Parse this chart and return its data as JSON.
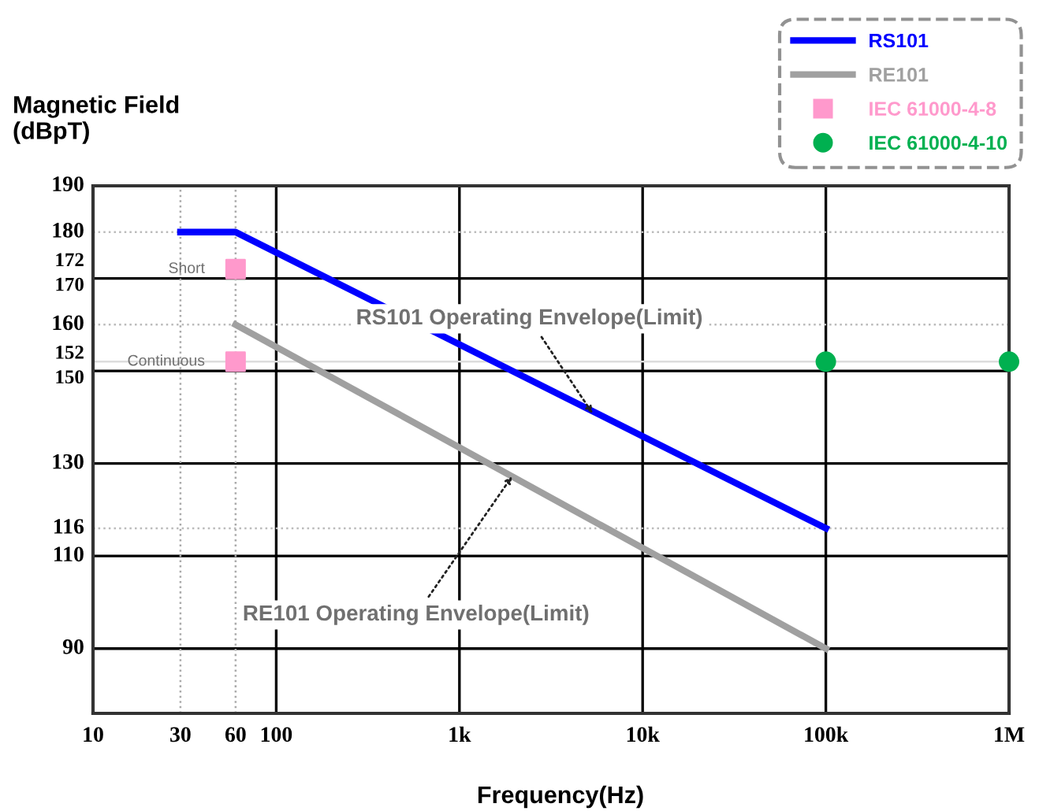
{
  "chart_data": {
    "type": "line",
    "xlabel": "Frequency(Hz)",
    "ylabel": "Magnetic Field\n(dBpT)",
    "log": "x",
    "xlim": [
      10,
      1000000
    ],
    "ylim": [
      76,
      190
    ],
    "xticks": [
      10,
      30,
      60,
      100,
      {
        "value": 1000,
        "label": "1k"
      },
      {
        "value": 10000,
        "label": "10k"
      },
      {
        "value": 100000,
        "label": "100k"
      },
      {
        "value": 1000000,
        "label": "1M"
      }
    ],
    "yticks": [
      90,
      110,
      116,
      130,
      150,
      152,
      160,
      170,
      172,
      180,
      190
    ],
    "grid": false,
    "legend": "top right",
    "series": [
      {
        "name": "RS101",
        "color": "#0000ff",
        "x": [
          30,
          60,
          100000
        ],
        "values": [
          180,
          180,
          116
        ],
        "marker": "none",
        "line_style": "solid"
      },
      {
        "name": "RE101",
        "color": "#a0a0a0",
        "x": [
          60,
          100000
        ],
        "values": [
          160,
          90
        ],
        "marker": "none",
        "line_style": "solid"
      },
      {
        "name": "IEC 61000-4-8",
        "type": "scatter",
        "color": "#ff99cc",
        "x": [
          60,
          60
        ],
        "values": [
          172,
          152
        ],
        "marker": "square"
      },
      {
        "name": "IEC 61000-4-10",
        "type": "scatter",
        "color": "#00b050",
        "x": [
          100000,
          1000000
        ],
        "values": [
          152,
          152
        ],
        "marker": "circle"
      }
    ],
    "ref_lines": [
      {
        "axis": "y",
        "value": 110,
        "color": "#000000",
        "line_style": "solid"
      },
      {
        "axis": "y",
        "value": 130,
        "color": "#000000",
        "line_style": "solid"
      },
      {
        "axis": "y",
        "value": 150,
        "color": "#000000",
        "line_style": "solid"
      },
      {
        "axis": "y",
        "value": 170,
        "color": "#000000",
        "line_style": "solid"
      },
      {
        "axis": "x",
        "value": 100,
        "color": "#000000",
        "line_style": "solid"
      },
      {
        "axis": "x",
        "value": 1000,
        "color": "#000000",
        "line_style": "solid"
      },
      {
        "axis": "x",
        "value": 10000,
        "color": "#000000",
        "line_style": "solid"
      },
      {
        "axis": "x",
        "value": 100000,
        "color": "#000000",
        "line_style": "solid"
      },
      {
        "axis": "y",
        "value": 90,
        "color": "#000000",
        "line_style": "solid"
      },
      {
        "axis": "x",
        "value": 30,
        "color": "#aaaaaa",
        "line_style": "dotted"
      },
      {
        "axis": "x",
        "value": 60,
        "color": "#aaaaaa",
        "line_style": "dotted"
      },
      {
        "axis": "y",
        "value": 116,
        "color": "#bbbbbb",
        "line_style": "dotted"
      },
      {
        "axis": "y",
        "value": 152,
        "color": "#dddddd",
        "line_style": "solid"
      },
      {
        "axis": "y",
        "value": 160,
        "color": "#bbbbbb",
        "line_style": "dotted"
      },
      {
        "axis": "y",
        "value": 180,
        "color": "#bbbbbb",
        "line_style": "dotted"
      }
    ],
    "annotations": [
      {
        "text": "Short",
        "x": 60,
        "y": 172
      },
      {
        "text": "Continuous",
        "x": 60,
        "y": 152
      },
      {
        "text": "RS101 Operating Envelope(Limit)",
        "x": 5500,
        "y": 140
      },
      {
        "text": "RE101 Operating Envelope(Limit)",
        "x": 2000,
        "y": 128
      }
    ]
  }
}
